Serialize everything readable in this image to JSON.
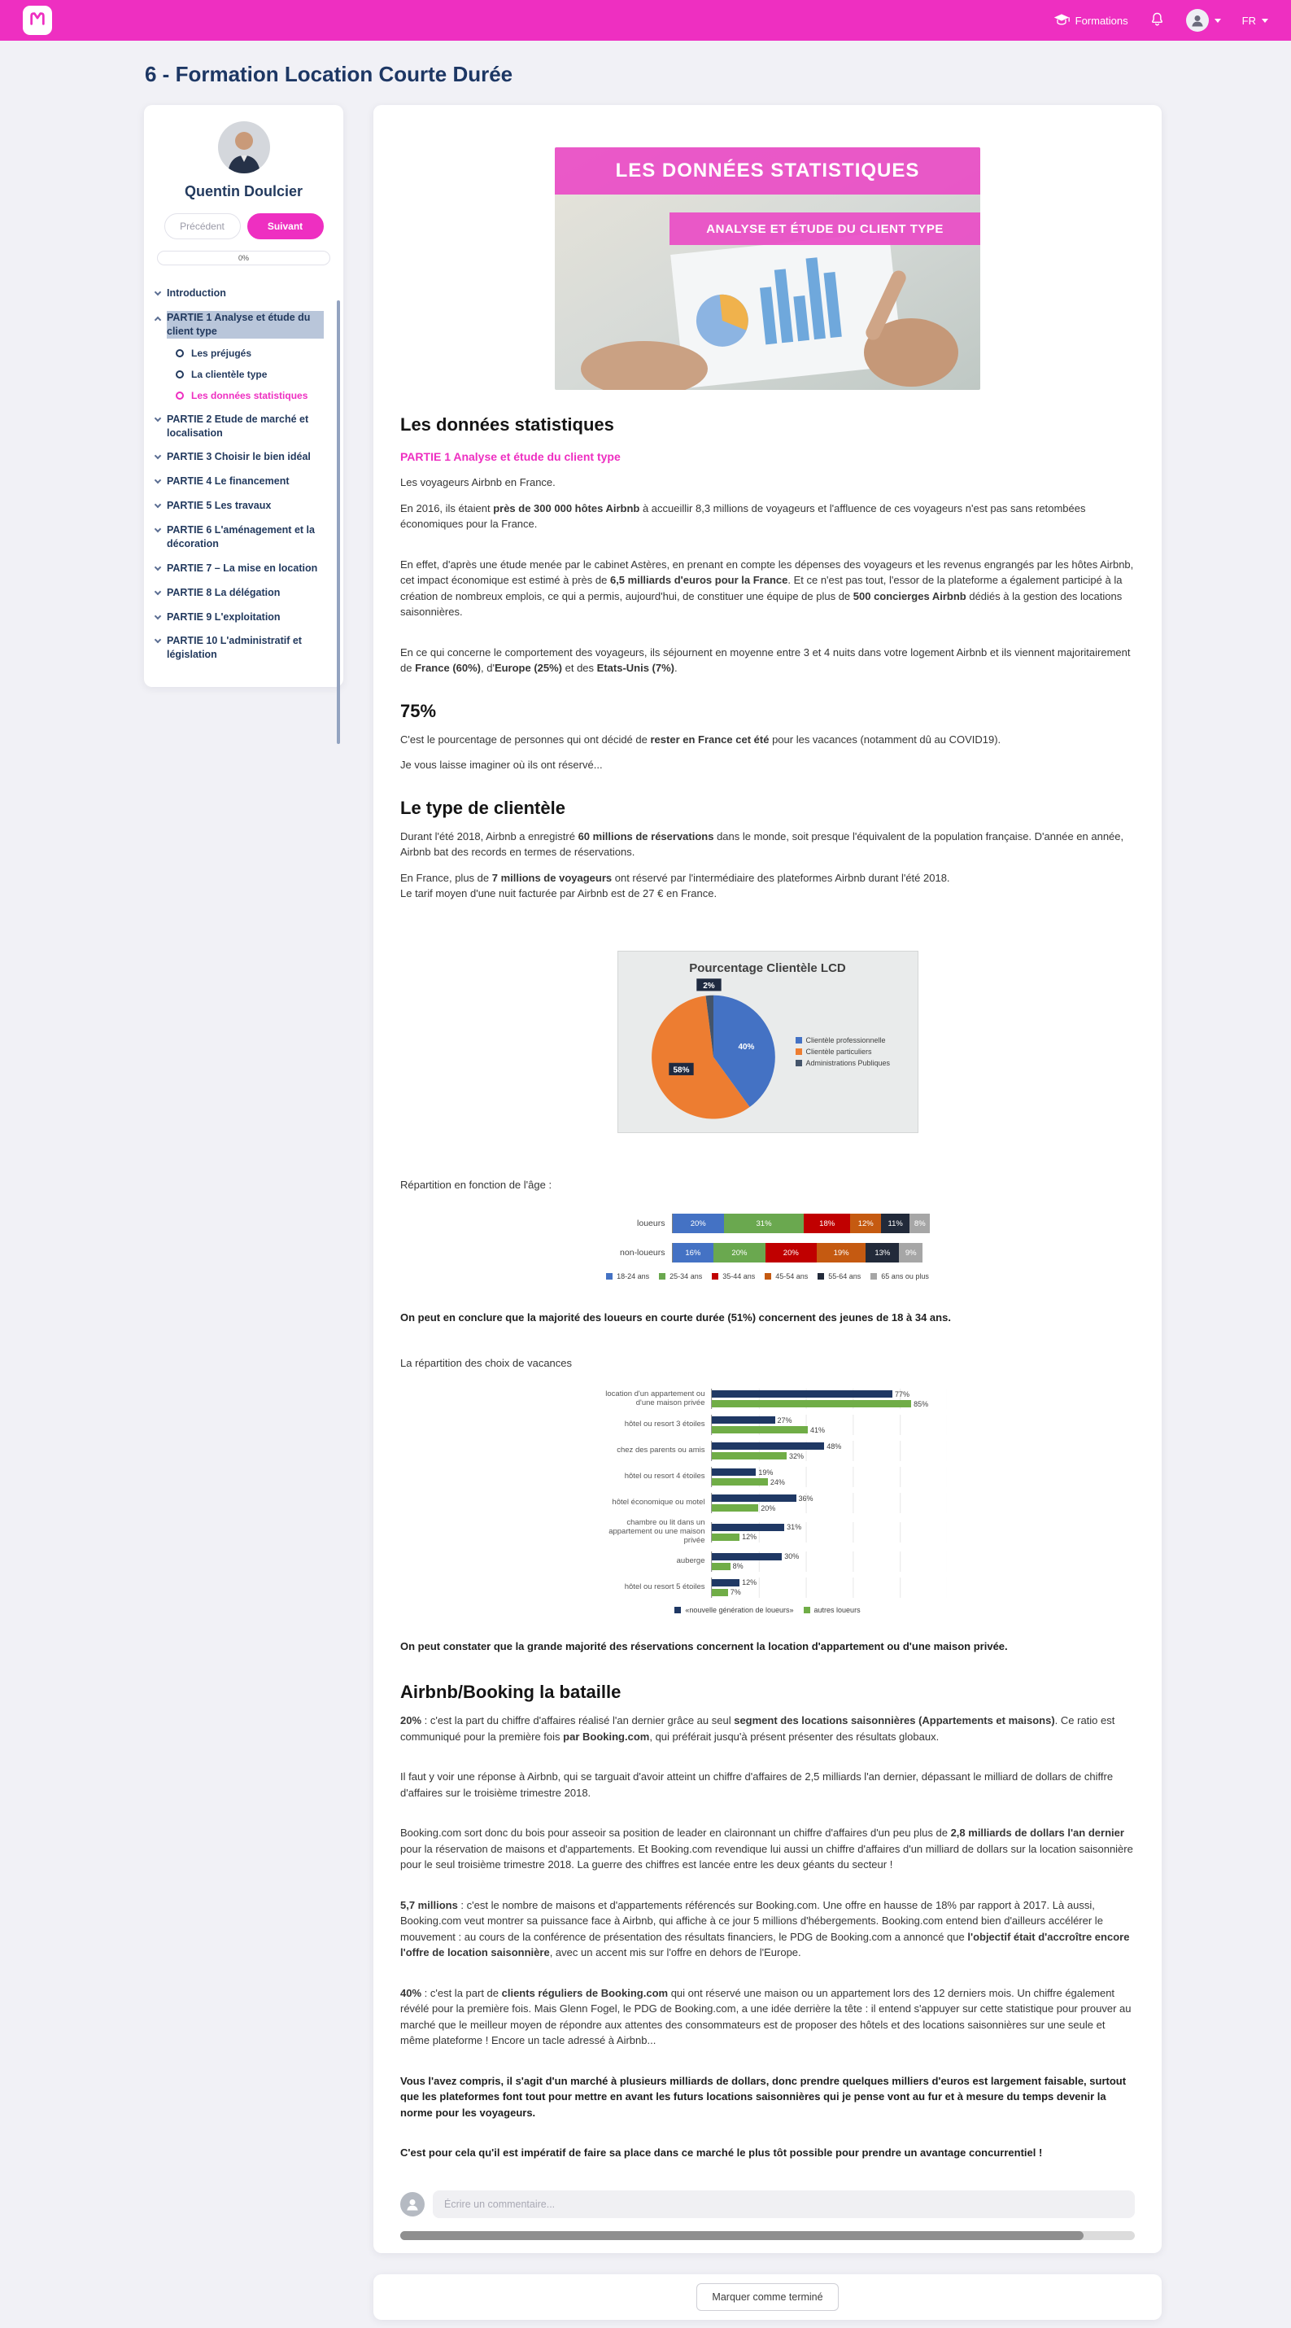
{
  "colors": {
    "accent": "#ee2fc1",
    "navy": "#233a5e"
  },
  "topbar": {
    "formations_label": "Formations",
    "lang": "FR"
  },
  "page": {
    "title": "6 - Formation Location Courte Durée"
  },
  "sidebar": {
    "user_name": "Quentin Doulcier",
    "prev_label": "Précédent",
    "next_label": "Suivant",
    "progress": "0%",
    "nav": [
      {
        "label": "Introduction",
        "chevron": "down"
      },
      {
        "label": "PARTIE 1 Analyse et étude du client type",
        "chevron": "up",
        "selected": true,
        "children": [
          {
            "label": "Les préjugés",
            "active": false
          },
          {
            "label": "La clientèle type",
            "active": false
          },
          {
            "label": "Les données statistiques",
            "active": true
          }
        ]
      },
      {
        "label": "PARTIE 2 Etude de marché et localisation",
        "chevron": "down"
      },
      {
        "label": "PARTIE 3 Choisir le bien idéal",
        "chevron": "down"
      },
      {
        "label": "PARTIE 4 Le financement",
        "chevron": "down"
      },
      {
        "label": "PARTIE 5 Les travaux",
        "chevron": "down"
      },
      {
        "label": "PARTIE 6 L'aménagement et la décoration",
        "chevron": "down"
      },
      {
        "label": "PARTIE 7 – La mise en location",
        "chevron": "down"
      },
      {
        "label": "PARTIE 8 La délégation",
        "chevron": "down"
      },
      {
        "label": "PARTIE 9 L'exploitation",
        "chevron": "down"
      },
      {
        "label": "PARTIE 10 L'administratif et législation",
        "chevron": "down"
      }
    ]
  },
  "lesson": {
    "banner_title": "LES DONNÉES STATISTIQUES",
    "banner_subtitle": "ANALYSE ET ÉTUDE DU CLIENT TYPE",
    "heading": "Les données statistiques",
    "part_label": "PARTIE 1 Analyse et étude du client type",
    "p_intro": "Les voyageurs Airbnb en France.",
    "p1": [
      {
        "t": "En 2016, ils étaient "
      },
      {
        "t": "près de 300 000 hôtes Airbnb",
        "b": true
      },
      {
        "t": " à accueillir 8,3 millions de voyageurs et l'affluence de ces voyageurs n'est pas sans retombées économiques pour la France."
      }
    ],
    "p2": [
      {
        "t": "En effet, d'après une étude menée par le cabinet Astères, en prenant en compte les dépenses des voyageurs et les revenus engrangés par les hôtes Airbnb, cet impact économique est estimé à près de "
      },
      {
        "t": "6,5 milliards d'euros pour la France",
        "b": true
      },
      {
        "t": ". Et ce n'est pas tout, l'essor de la plateforme a également participé à la création de nombreux emplois, ce qui a permis, aujourd'hui, de constituer une équipe de plus de "
      },
      {
        "t": "500 concierges Airbnb",
        "b": true
      },
      {
        "t": " dédiés à la gestion des locations saisonnières."
      }
    ],
    "p3": [
      {
        "t": "En ce qui concerne le comportement des voyageurs, ils séjournent en moyenne entre 3 et 4 nuits dans votre logement Airbnb et ils viennent majoritairement de "
      },
      {
        "t": "France (60%)",
        "b": true
      },
      {
        "t": ", d'"
      },
      {
        "t": "Europe (25%)",
        "b": true
      },
      {
        "t": " et des "
      },
      {
        "t": "Etats-Unis (7%)",
        "b": true
      },
      {
        "t": "."
      }
    ],
    "h_75": "75%",
    "p4": [
      {
        "t": "C'est le pourcentage de personnes qui ont décidé de "
      },
      {
        "t": "rester en France cet été",
        "b": true
      },
      {
        "t": " pour les vacances (notamment dû au COVID19)."
      }
    ],
    "p5": "Je vous laisse imaginer où ils ont réservé...",
    "h_clientele": "Le type de clientèle",
    "p6": [
      {
        "t": "Durant l'été 2018, Airbnb a enregistré "
      },
      {
        "t": "60 millions de réservations",
        "b": true
      },
      {
        "t": " dans le monde, soit presque l'équivalent de la population française. D'année en année, Airbnb bat des records en termes de réservations."
      }
    ],
    "p7": [
      {
        "t": "En France, plus de "
      },
      {
        "t": "7 millions de voyageurs",
        "b": true
      },
      {
        "t": " ont réservé par l'intermédiaire des plateformes Airbnb durant l'été 2018."
      },
      {
        "br": true
      },
      {
        "t": "Le tarif moyen d'une nuit facturée par Airbnb est de 27 € en France."
      }
    ],
    "caption_age": "Répartition en fonction de l'âge :",
    "concl_age": "On peut en conclure que la majorité des loueurs en courte durée (51%) concernent des jeunes de 18 à 34 ans.",
    "caption_vac": "La répartition des choix de vacances",
    "concl_vac": "On peut constater que la grande majorité des réservations concernent la location d'appartement ou d'une maison privée.",
    "h_bataille": "Airbnb/Booking la bataille",
    "p8": [
      {
        "t": "20%",
        "b": true
      },
      {
        "t": " : c'est la part du chiffre d'affaires réalisé l'an dernier grâce au seul "
      },
      {
        "t": "segment des locations saisonnières (Appartements et maisons)",
        "b": true
      },
      {
        "t": ". Ce ratio est communiqué pour la première fois "
      },
      {
        "t": "par Booking.com",
        "b": true
      },
      {
        "t": ", qui préférait jusqu'à présent présenter des résultats globaux."
      }
    ],
    "p9": [
      {
        "t": "Il faut y voir une réponse à Airbnb, qui se targuait d'avoir atteint un chiffre d'affaires de 2,5 milliards l'an dernier, dépassant le milliard de dollars de chiffre d'affaires sur le troisième trimestre 2018."
      }
    ],
    "p10": [
      {
        "t": "Booking.com sort donc du bois pour asseoir sa position de leader en claironnant un chiffre d'affaires d'un peu plus de "
      },
      {
        "t": "2,8 milliards de dollars l'an dernier",
        "b": true
      },
      {
        "t": " pour la réservation de maisons et d'appartements. Et Booking.com revendique lui aussi un chiffre d'affaires d'un milliard de dollars sur la location saisonnière pour le seul troisième trimestre 2018. La guerre des chiffres est lancée entre les deux géants du secteur !"
      }
    ],
    "p11": [
      {
        "t": "5,7 millions",
        "b": true
      },
      {
        "t": " : c'est le nombre de maisons et d'appartements référencés sur Booking.com. Une offre en hausse de 18% par rapport à 2017. Là aussi, Booking.com veut montrer sa puissance face à Airbnb, qui affiche à ce jour 5 millions d'hébergements. Booking.com entend bien d'ailleurs accélérer le mouvement : au cours de la conférence de présentation des résultats financiers, le PDG de Booking.com a annoncé que "
      },
      {
        "t": "l'objectif était d'accroître encore l'offre de location saisonnière",
        "b": true
      },
      {
        "t": ", avec un accent mis sur l'offre en dehors de l'Europe."
      }
    ],
    "p12": [
      {
        "t": "40%",
        "b": true
      },
      {
        "t": " : c'est la part de "
      },
      {
        "t": "clients réguliers de Booking.com",
        "b": true
      },
      {
        "t": " qui ont réservé une maison ou un appartement lors des 12 derniers mois. Un chiffre également révélé pour la première fois. Mais Glenn Fogel, le PDG de Booking.com, a une idée derrière la tête : il entend s'appuyer sur cette statistique pour prouver au marché que le meilleur moyen de répondre aux attentes des consommateurs est de proposer des hôtels et des locations saisonnières sur une seule et même plateforme ! Encore un tacle adressé à Airbnb..."
      }
    ],
    "p13": "Vous l'avez compris, il s'agit d'un marché à plusieurs milliards de dollars, donc prendre quelques milliers d'euros est largement faisable, surtout que les plateformes font tout pour mettre en avant les futurs locations saisonnières qui je pense vont au fur et à mesure du temps devenir la norme pour les voyageurs.",
    "p14": "C'est pour cela qu'il est impératif de faire sa place dans ce marché le plus tôt possible pour prendre un avantage concurrentiel !",
    "comment_placeholder": "Écrire un commentaire..."
  },
  "footer": {
    "complete_label": "Marquer comme terminé"
  },
  "chart_data": [
    {
      "type": "pie",
      "title": "Pourcentage Clientèle LCD",
      "labels": [
        "Clientèle professionnelle",
        "Clientèle particuliers",
        "Administrations Publiques"
      ],
      "values": [
        40,
        58,
        2
      ],
      "value_labels": [
        "40%",
        "58%",
        "2%"
      ],
      "colors": [
        "#4472c4",
        "#ed7d31",
        "#44546a"
      ],
      "legend_position": "right"
    },
    {
      "type": "bar",
      "subtype": "stacked-horizontal",
      "categories": [
        "loueurs",
        "non-loueurs"
      ],
      "series": [
        {
          "name": "18-24 ans",
          "color": "#4472c4",
          "values": [
            20,
            16
          ]
        },
        {
          "name": "25-34 ans",
          "color": "#6aa84f",
          "values": [
            31,
            20
          ]
        },
        {
          "name": "35-44 ans",
          "color": "#c00000",
          "values": [
            18,
            20
          ]
        },
        {
          "name": "45-54 ans",
          "color": "#c55a11",
          "values": [
            12,
            19
          ]
        },
        {
          "name": "55-64 ans",
          "color": "#222a3a",
          "values": [
            11,
            13
          ]
        },
        {
          "name": "65 ans ou plus",
          "color": "#a6a6a6",
          "values": [
            8,
            9
          ]
        }
      ],
      "xlim": [
        0,
        100
      ]
    },
    {
      "type": "bar",
      "subtype": "grouped-horizontal",
      "categories": [
        "location d'un appartement ou d'une maison privée",
        "hôtel ou resort 3 étoiles",
        "chez des parents ou amis",
        "hôtel ou resort 4 étoiles",
        "hôtel économique ou motel",
        "chambre ou lit dans un appartement ou une maison privée",
        "auberge",
        "hôtel ou resort 5 étoiles"
      ],
      "series": [
        {
          "name": "«nouvelle génération de loueurs»",
          "color": "#1f3864",
          "values": [
            77,
            27,
            48,
            19,
            36,
            31,
            30,
            12
          ]
        },
        {
          "name": "autres loueurs",
          "color": "#70ad47",
          "values": [
            85,
            41,
            32,
            24,
            20,
            12,
            8,
            7
          ]
        }
      ],
      "xlim": [
        0,
        100
      ]
    }
  ]
}
